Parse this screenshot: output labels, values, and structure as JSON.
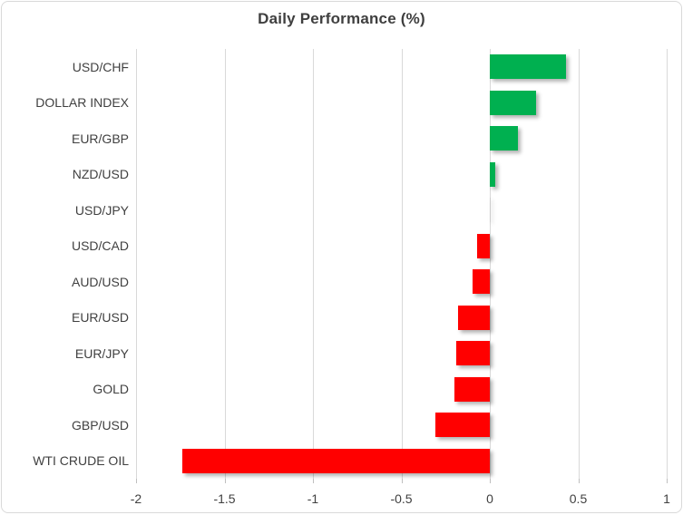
{
  "chart_data": {
    "type": "bar",
    "orientation": "horizontal",
    "title": "Daily Performance (%)",
    "categories": [
      "USD/CHF",
      "DOLLAR INDEX",
      "EUR/GBP",
      "NZD/USD",
      "USD/JPY",
      "USD/CAD",
      "AUD/USD",
      "EUR/USD",
      "EUR/JPY",
      "GOLD",
      "GBP/USD",
      "WTI CRUDE OIL"
    ],
    "values": [
      0.43,
      0.26,
      0.16,
      0.03,
      0.0,
      -0.07,
      -0.1,
      -0.18,
      -0.19,
      -0.2,
      -0.31,
      -1.74
    ],
    "xlabel": "",
    "ylabel": "",
    "xlim": [
      -2,
      1
    ],
    "x_ticks": [
      -2,
      -1.5,
      -1,
      -0.5,
      0,
      0.5,
      1
    ],
    "x_tick_labels": [
      "-2",
      "-1.5",
      "-1",
      "-0.5",
      "0",
      "0.5",
      "1"
    ],
    "grid": true,
    "legend": false,
    "positive_color": "#00B050",
    "negative_color": "#FF0000",
    "zero_bar_color": "rgba(0,0,0,0.05)",
    "text_color": "#404040",
    "gridline_color": "#D9D9D9"
  }
}
